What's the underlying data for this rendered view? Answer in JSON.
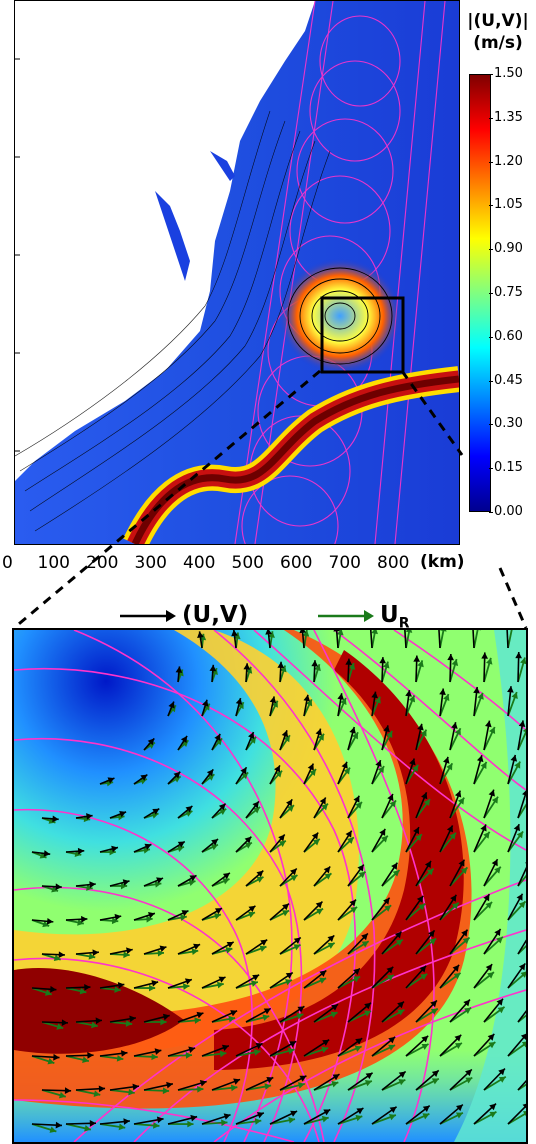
{
  "colorbar": {
    "title_line1": "|(U,V)|",
    "title_line2": "(m/s)",
    "ticks": [
      "1.50",
      "1.35",
      "1.20",
      "1.05",
      "0.90",
      "0.75",
      "0.60",
      "0.45",
      "0.30",
      "0.15",
      "0.00"
    ],
    "range": [
      0.0,
      1.5
    ],
    "colormap": [
      "#00008f",
      "#0000ff",
      "#0080ff",
      "#00ffff",
      "#80ff80",
      "#ffff00",
      "#ff8000",
      "#ff0000",
      "#800000"
    ]
  },
  "x_axis": {
    "ticks": [
      "0",
      "100",
      "200",
      "300",
      "400",
      "500",
      "600",
      "700",
      "800"
    ],
    "unit": "(km)"
  },
  "legend": {
    "black_arrow_label": "(U,V)",
    "green_arrow_label": "U",
    "green_arrow_subscript": "R",
    "black_color": "#000000",
    "green_color": "#1a7a1a"
  },
  "colors": {
    "land": "#ffffff",
    "ocean_low": "#1a3ccf",
    "gulf_stream": "#8b0000",
    "swath": "#ff33cc",
    "inset_box": "#000000"
  }
}
